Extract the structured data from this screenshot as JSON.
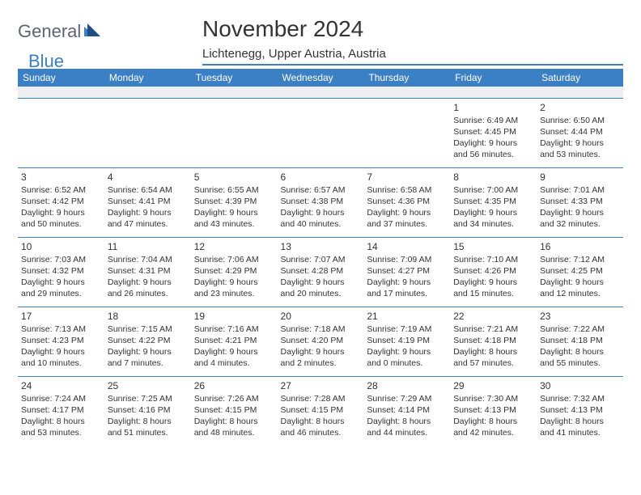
{
  "logo": {
    "general": "General",
    "blue": "Blue"
  },
  "title": "November 2024",
  "location": "Lichtenegg, Upper Austria, Austria",
  "colors": {
    "accent": "#3b7fc4",
    "header_text": "#ffffff",
    "body_text": "#333333",
    "blank_row_bg": "#eceef0",
    "page_bg": "#ffffff",
    "logo_gray": "#5a6570"
  },
  "days_of_week": [
    "Sunday",
    "Monday",
    "Tuesday",
    "Wednesday",
    "Thursday",
    "Friday",
    "Saturday"
  ],
  "weeks": [
    [
      {
        "num": "",
        "sunrise": "",
        "sunset": "",
        "daylight": ""
      },
      {
        "num": "",
        "sunrise": "",
        "sunset": "",
        "daylight": ""
      },
      {
        "num": "",
        "sunrise": "",
        "sunset": "",
        "daylight": ""
      },
      {
        "num": "",
        "sunrise": "",
        "sunset": "",
        "daylight": ""
      },
      {
        "num": "",
        "sunrise": "",
        "sunset": "",
        "daylight": ""
      },
      {
        "num": "1",
        "sunrise": "Sunrise: 6:49 AM",
        "sunset": "Sunset: 4:45 PM",
        "daylight": "Daylight: 9 hours and 56 minutes."
      },
      {
        "num": "2",
        "sunrise": "Sunrise: 6:50 AM",
        "sunset": "Sunset: 4:44 PM",
        "daylight": "Daylight: 9 hours and 53 minutes."
      }
    ],
    [
      {
        "num": "3",
        "sunrise": "Sunrise: 6:52 AM",
        "sunset": "Sunset: 4:42 PM",
        "daylight": "Daylight: 9 hours and 50 minutes."
      },
      {
        "num": "4",
        "sunrise": "Sunrise: 6:54 AM",
        "sunset": "Sunset: 4:41 PM",
        "daylight": "Daylight: 9 hours and 47 minutes."
      },
      {
        "num": "5",
        "sunrise": "Sunrise: 6:55 AM",
        "sunset": "Sunset: 4:39 PM",
        "daylight": "Daylight: 9 hours and 43 minutes."
      },
      {
        "num": "6",
        "sunrise": "Sunrise: 6:57 AM",
        "sunset": "Sunset: 4:38 PM",
        "daylight": "Daylight: 9 hours and 40 minutes."
      },
      {
        "num": "7",
        "sunrise": "Sunrise: 6:58 AM",
        "sunset": "Sunset: 4:36 PM",
        "daylight": "Daylight: 9 hours and 37 minutes."
      },
      {
        "num": "8",
        "sunrise": "Sunrise: 7:00 AM",
        "sunset": "Sunset: 4:35 PM",
        "daylight": "Daylight: 9 hours and 34 minutes."
      },
      {
        "num": "9",
        "sunrise": "Sunrise: 7:01 AM",
        "sunset": "Sunset: 4:33 PM",
        "daylight": "Daylight: 9 hours and 32 minutes."
      }
    ],
    [
      {
        "num": "10",
        "sunrise": "Sunrise: 7:03 AM",
        "sunset": "Sunset: 4:32 PM",
        "daylight": "Daylight: 9 hours and 29 minutes."
      },
      {
        "num": "11",
        "sunrise": "Sunrise: 7:04 AM",
        "sunset": "Sunset: 4:31 PM",
        "daylight": "Daylight: 9 hours and 26 minutes."
      },
      {
        "num": "12",
        "sunrise": "Sunrise: 7:06 AM",
        "sunset": "Sunset: 4:29 PM",
        "daylight": "Daylight: 9 hours and 23 minutes."
      },
      {
        "num": "13",
        "sunrise": "Sunrise: 7:07 AM",
        "sunset": "Sunset: 4:28 PM",
        "daylight": "Daylight: 9 hours and 20 minutes."
      },
      {
        "num": "14",
        "sunrise": "Sunrise: 7:09 AM",
        "sunset": "Sunset: 4:27 PM",
        "daylight": "Daylight: 9 hours and 17 minutes."
      },
      {
        "num": "15",
        "sunrise": "Sunrise: 7:10 AM",
        "sunset": "Sunset: 4:26 PM",
        "daylight": "Daylight: 9 hours and 15 minutes."
      },
      {
        "num": "16",
        "sunrise": "Sunrise: 7:12 AM",
        "sunset": "Sunset: 4:25 PM",
        "daylight": "Daylight: 9 hours and 12 minutes."
      }
    ],
    [
      {
        "num": "17",
        "sunrise": "Sunrise: 7:13 AM",
        "sunset": "Sunset: 4:23 PM",
        "daylight": "Daylight: 9 hours and 10 minutes."
      },
      {
        "num": "18",
        "sunrise": "Sunrise: 7:15 AM",
        "sunset": "Sunset: 4:22 PM",
        "daylight": "Daylight: 9 hours and 7 minutes."
      },
      {
        "num": "19",
        "sunrise": "Sunrise: 7:16 AM",
        "sunset": "Sunset: 4:21 PM",
        "daylight": "Daylight: 9 hours and 4 minutes."
      },
      {
        "num": "20",
        "sunrise": "Sunrise: 7:18 AM",
        "sunset": "Sunset: 4:20 PM",
        "daylight": "Daylight: 9 hours and 2 minutes."
      },
      {
        "num": "21",
        "sunrise": "Sunrise: 7:19 AM",
        "sunset": "Sunset: 4:19 PM",
        "daylight": "Daylight: 9 hours and 0 minutes."
      },
      {
        "num": "22",
        "sunrise": "Sunrise: 7:21 AM",
        "sunset": "Sunset: 4:18 PM",
        "daylight": "Daylight: 8 hours and 57 minutes."
      },
      {
        "num": "23",
        "sunrise": "Sunrise: 7:22 AM",
        "sunset": "Sunset: 4:18 PM",
        "daylight": "Daylight: 8 hours and 55 minutes."
      }
    ],
    [
      {
        "num": "24",
        "sunrise": "Sunrise: 7:24 AM",
        "sunset": "Sunset: 4:17 PM",
        "daylight": "Daylight: 8 hours and 53 minutes."
      },
      {
        "num": "25",
        "sunrise": "Sunrise: 7:25 AM",
        "sunset": "Sunset: 4:16 PM",
        "daylight": "Daylight: 8 hours and 51 minutes."
      },
      {
        "num": "26",
        "sunrise": "Sunrise: 7:26 AM",
        "sunset": "Sunset: 4:15 PM",
        "daylight": "Daylight: 8 hours and 48 minutes."
      },
      {
        "num": "27",
        "sunrise": "Sunrise: 7:28 AM",
        "sunset": "Sunset: 4:15 PM",
        "daylight": "Daylight: 8 hours and 46 minutes."
      },
      {
        "num": "28",
        "sunrise": "Sunrise: 7:29 AM",
        "sunset": "Sunset: 4:14 PM",
        "daylight": "Daylight: 8 hours and 44 minutes."
      },
      {
        "num": "29",
        "sunrise": "Sunrise: 7:30 AM",
        "sunset": "Sunset: 4:13 PM",
        "daylight": "Daylight: 8 hours and 42 minutes."
      },
      {
        "num": "30",
        "sunrise": "Sunrise: 7:32 AM",
        "sunset": "Sunset: 4:13 PM",
        "daylight": "Daylight: 8 hours and 41 minutes."
      }
    ]
  ]
}
